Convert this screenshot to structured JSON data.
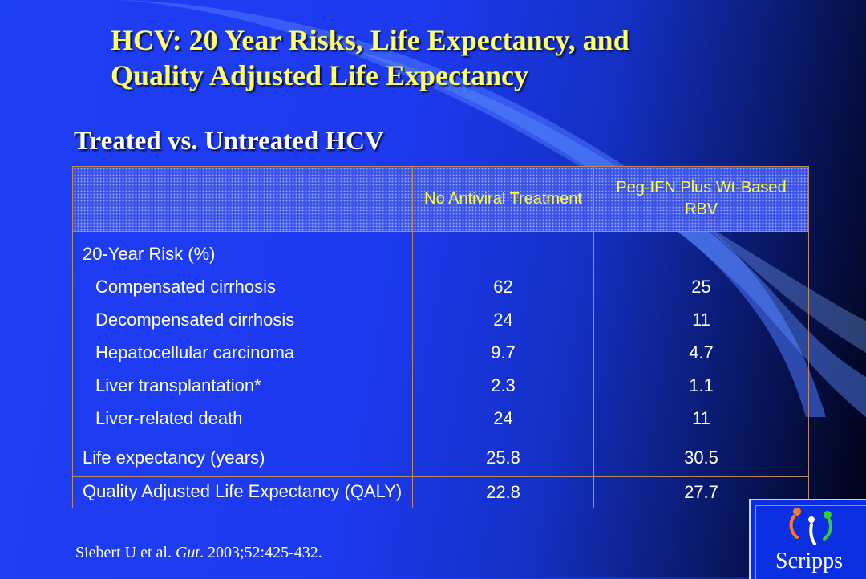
{
  "title_lines": [
    "HCV: 20 Year Risks, Life Expectancy, and",
    "Quality Adjusted Life Expectancy"
  ],
  "subtitle": "Treated vs. Untreated HCV",
  "table": {
    "headers": [
      "",
      "No Antiviral Treatment",
      "Peg-IFN Plus Wt-Based RBV"
    ],
    "risk_section": {
      "label": "20-Year Risk (%)",
      "rows": [
        {
          "label": "Compensated cirrhosis",
          "no_antiviral": "62",
          "peg_ifn": "25"
        },
        {
          "label": "Decompensated cirrhosis",
          "no_antiviral": "24",
          "peg_ifn": "11"
        },
        {
          "label": "Hepatocellular carcinoma",
          "no_antiviral": "9.7",
          "peg_ifn": "4.7"
        },
        {
          "label": "Liver transplantation*",
          "no_antiviral": "2.3",
          "peg_ifn": "1.1"
        },
        {
          "label": "Liver-related death",
          "no_antiviral": "24",
          "peg_ifn": "11"
        }
      ]
    },
    "life_expectancy": {
      "label": "Life expectancy (years)",
      "no_antiviral": "25.8",
      "peg_ifn": "30.5"
    },
    "qaly": {
      "label": "Quality Adjusted Life Expectancy (QALY)",
      "no_antiviral": "22.8",
      "peg_ifn": "27.7"
    }
  },
  "citation": {
    "before": "Siebert U et al. ",
    "journal": "Gut",
    "after": ". 2003;52:425-432."
  },
  "logo": {
    "text": "Scripps",
    "icon": "scripps-figure-icon"
  },
  "colors": {
    "background": "#1f3ff5",
    "title": "#ffff66",
    "header_text": "#ffff33",
    "border": "#b88a60"
  }
}
